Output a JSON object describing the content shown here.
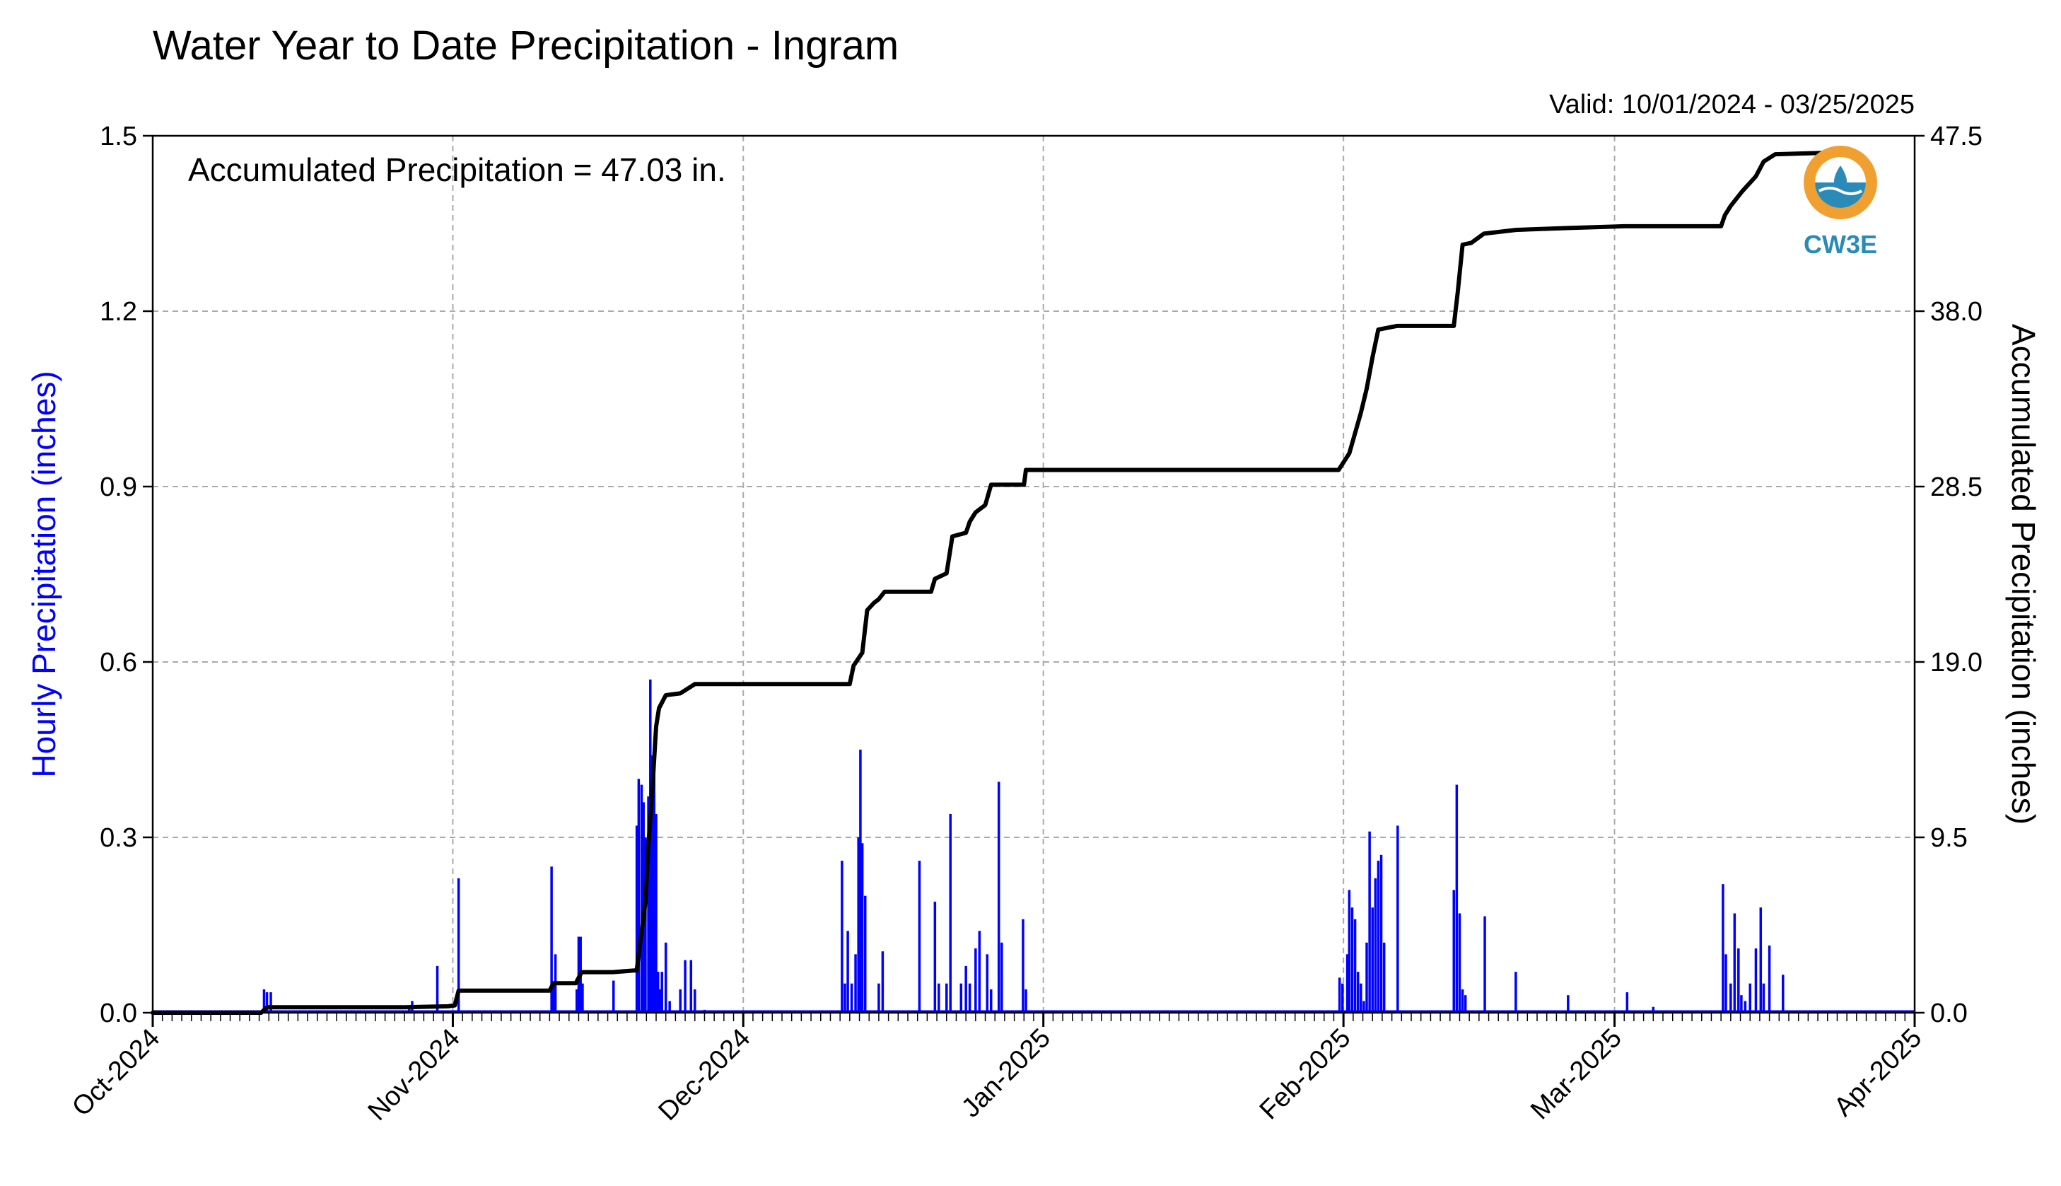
{
  "chart_data": {
    "type": "bar+line",
    "title": "Water Year to Date Precipitation - Ingram",
    "subtitle": "Valid: 10/01/2024 - 03/25/2025",
    "annotation": "Accumulated Precipitation = 47.03 in.",
    "ylabel_left": "Hourly Precipitation (inches)",
    "ylabel_right": "Accumulated Precipitation (inches)",
    "ylim_left": [
      0,
      1.5
    ],
    "ylim_right": [
      0,
      47.5
    ],
    "yticks_left": [
      "0.0",
      "0.3",
      "0.6",
      "0.9",
      "1.2",
      "1.5"
    ],
    "yticks_right": [
      "0.0",
      "9.5",
      "19.0",
      "28.5",
      "38.0",
      "47.5"
    ],
    "xticks": [
      "Oct-2024",
      "Nov-2024",
      "Dec-2024",
      "Jan-2025",
      "Feb-2025",
      "Mar-2025",
      "Apr-2025"
    ],
    "x_units": "days since 2024-10-01",
    "xlim": [
      0,
      182
    ],
    "grid": true,
    "colors": {
      "hourly": "#0000ff",
      "accumulated": "#000000"
    },
    "series": [
      {
        "name": "Hourly Precipitation",
        "type": "bar",
        "points": [
          [
            11.5,
            0.04
          ],
          [
            11.8,
            0.035
          ],
          [
            12.2,
            0.035
          ],
          [
            26.5,
            0.01
          ],
          [
            26.8,
            0.02
          ],
          [
            29.4,
            0.08
          ],
          [
            31.6,
            0.23
          ],
          [
            41.2,
            0.25
          ],
          [
            41.4,
            0.05
          ],
          [
            41.6,
            0.1
          ],
          [
            43.8,
            0.04
          ],
          [
            44.0,
            0.13
          ],
          [
            44.2,
            0.13
          ],
          [
            44.4,
            0.05
          ],
          [
            47.6,
            0.055
          ],
          [
            50.0,
            0.32
          ],
          [
            50.2,
            0.4
          ],
          [
            50.5,
            0.39
          ],
          [
            50.7,
            0.36
          ],
          [
            50.9,
            0.3
          ],
          [
            51.2,
            0.37
          ],
          [
            51.4,
            0.57
          ],
          [
            51.6,
            0.44
          ],
          [
            51.8,
            0.41
          ],
          [
            52.0,
            0.34
          ],
          [
            52.2,
            0.07
          ],
          [
            52.4,
            0.04
          ],
          [
            52.6,
            0.07
          ],
          [
            53.0,
            0.12
          ],
          [
            53.4,
            0.02
          ],
          [
            54.5,
            0.04
          ],
          [
            55.0,
            0.09
          ],
          [
            55.6,
            0.09
          ],
          [
            56.0,
            0.04
          ],
          [
            57.0,
            0.005
          ],
          [
            71.2,
            0.26
          ],
          [
            71.5,
            0.05
          ],
          [
            71.8,
            0.14
          ],
          [
            72.2,
            0.05
          ],
          [
            72.6,
            0.1
          ],
          [
            72.9,
            0.3
          ],
          [
            73.1,
            0.45
          ],
          [
            73.3,
            0.29
          ],
          [
            73.6,
            0.2
          ],
          [
            75.0,
            0.05
          ],
          [
            75.4,
            0.105
          ],
          [
            79.2,
            0.26
          ],
          [
            80.8,
            0.19
          ],
          [
            81.2,
            0.05
          ],
          [
            82.0,
            0.05
          ],
          [
            82.4,
            0.34
          ],
          [
            83.5,
            0.05
          ],
          [
            84.0,
            0.08
          ],
          [
            84.4,
            0.05
          ],
          [
            85.0,
            0.11
          ],
          [
            85.4,
            0.14
          ],
          [
            86.2,
            0.1
          ],
          [
            86.6,
            0.04
          ],
          [
            87.4,
            0.395
          ],
          [
            87.7,
            0.12
          ],
          [
            89.9,
            0.16
          ],
          [
            90.2,
            0.04
          ],
          [
            122.6,
            0.06
          ],
          [
            122.9,
            0.05
          ],
          [
            123.4,
            0.1
          ],
          [
            123.6,
            0.21
          ],
          [
            123.9,
            0.18
          ],
          [
            124.2,
            0.16
          ],
          [
            124.5,
            0.07
          ],
          [
            124.8,
            0.05
          ],
          [
            125.1,
            0.02
          ],
          [
            125.4,
            0.12
          ],
          [
            125.7,
            0.31
          ],
          [
            126.0,
            0.18
          ],
          [
            126.3,
            0.23
          ],
          [
            126.6,
            0.26
          ],
          [
            126.9,
            0.27
          ],
          [
            127.2,
            0.12
          ],
          [
            128.6,
            0.32
          ],
          [
            134.4,
            0.21
          ],
          [
            134.7,
            0.39
          ],
          [
            135.0,
            0.17
          ],
          [
            135.3,
            0.04
          ],
          [
            135.6,
            0.03
          ],
          [
            137.6,
            0.165
          ],
          [
            140.8,
            0.07
          ],
          [
            146.2,
            0.03
          ],
          [
            152.3,
            0.035
          ],
          [
            155.0,
            0.01
          ],
          [
            162.2,
            0.22
          ],
          [
            162.5,
            0.1
          ],
          [
            163.0,
            0.05
          ],
          [
            163.4,
            0.17
          ],
          [
            163.8,
            0.11
          ],
          [
            164.1,
            0.03
          ],
          [
            164.5,
            0.02
          ],
          [
            165.0,
            0.05
          ],
          [
            165.6,
            0.11
          ],
          [
            166.1,
            0.18
          ],
          [
            166.4,
            0.05
          ],
          [
            167.0,
            0.115
          ],
          [
            168.4,
            0.065
          ]
        ]
      },
      {
        "name": "Accumulated Precipitation",
        "type": "line",
        "points": [
          [
            0,
            0
          ],
          [
            11.2,
            0
          ],
          [
            11.8,
            0.3
          ],
          [
            26,
            0.3
          ],
          [
            30.5,
            0.35
          ],
          [
            31.2,
            0.4
          ],
          [
            31.6,
            1.2
          ],
          [
            41.0,
            1.2
          ],
          [
            41.4,
            1.6
          ],
          [
            43.7,
            1.6
          ],
          [
            44.3,
            2.2
          ],
          [
            47.5,
            2.2
          ],
          [
            50.0,
            2.3
          ],
          [
            50.4,
            4.0
          ],
          [
            50.9,
            6.0
          ],
          [
            51.2,
            9.0
          ],
          [
            51.6,
            12.0
          ],
          [
            52.0,
            15.5
          ],
          [
            52.3,
            16.5
          ],
          [
            53.0,
            17.2
          ],
          [
            54.5,
            17.3
          ],
          [
            56,
            17.8
          ],
          [
            72,
            17.8
          ],
          [
            72.4,
            18.8
          ],
          [
            73.3,
            19.5
          ],
          [
            73.8,
            21.8
          ],
          [
            74.5,
            22.2
          ],
          [
            75.0,
            22.4
          ],
          [
            75.6,
            22.8
          ],
          [
            80.4,
            22.8
          ],
          [
            80.8,
            23.5
          ],
          [
            82.0,
            23.8
          ],
          [
            82.6,
            25.8
          ],
          [
            84.0,
            26.0
          ],
          [
            84.4,
            26.6
          ],
          [
            85.0,
            27.1
          ],
          [
            86.0,
            27.5
          ],
          [
            86.6,
            28.6
          ],
          [
            90,
            28.6
          ],
          [
            90.2,
            29.4
          ],
          [
            122.5,
            29.4
          ],
          [
            123.6,
            30.3
          ],
          [
            124.2,
            31.4
          ],
          [
            124.8,
            32.5
          ],
          [
            125.4,
            33.8
          ],
          [
            126.0,
            35.5
          ],
          [
            126.6,
            37.0
          ],
          [
            128.5,
            37.2
          ],
          [
            134.4,
            37.2
          ],
          [
            134.8,
            39.0
          ],
          [
            135.3,
            41.6
          ],
          [
            136.2,
            41.7
          ],
          [
            137.5,
            42.2
          ],
          [
            140.8,
            42.4
          ],
          [
            146,
            42.5
          ],
          [
            152,
            42.6
          ],
          [
            162,
            42.6
          ],
          [
            162.4,
            43.2
          ],
          [
            163.0,
            43.7
          ],
          [
            164.2,
            44.5
          ],
          [
            165.6,
            45.3
          ],
          [
            166.4,
            46.1
          ],
          [
            167.6,
            46.5
          ],
          [
            174.4,
            46.6
          ]
        ]
      }
    ]
  },
  "logo": {
    "text": "CW3E",
    "colors": {
      "orange": "#f0a030",
      "blue": "#2a8ab8"
    }
  }
}
